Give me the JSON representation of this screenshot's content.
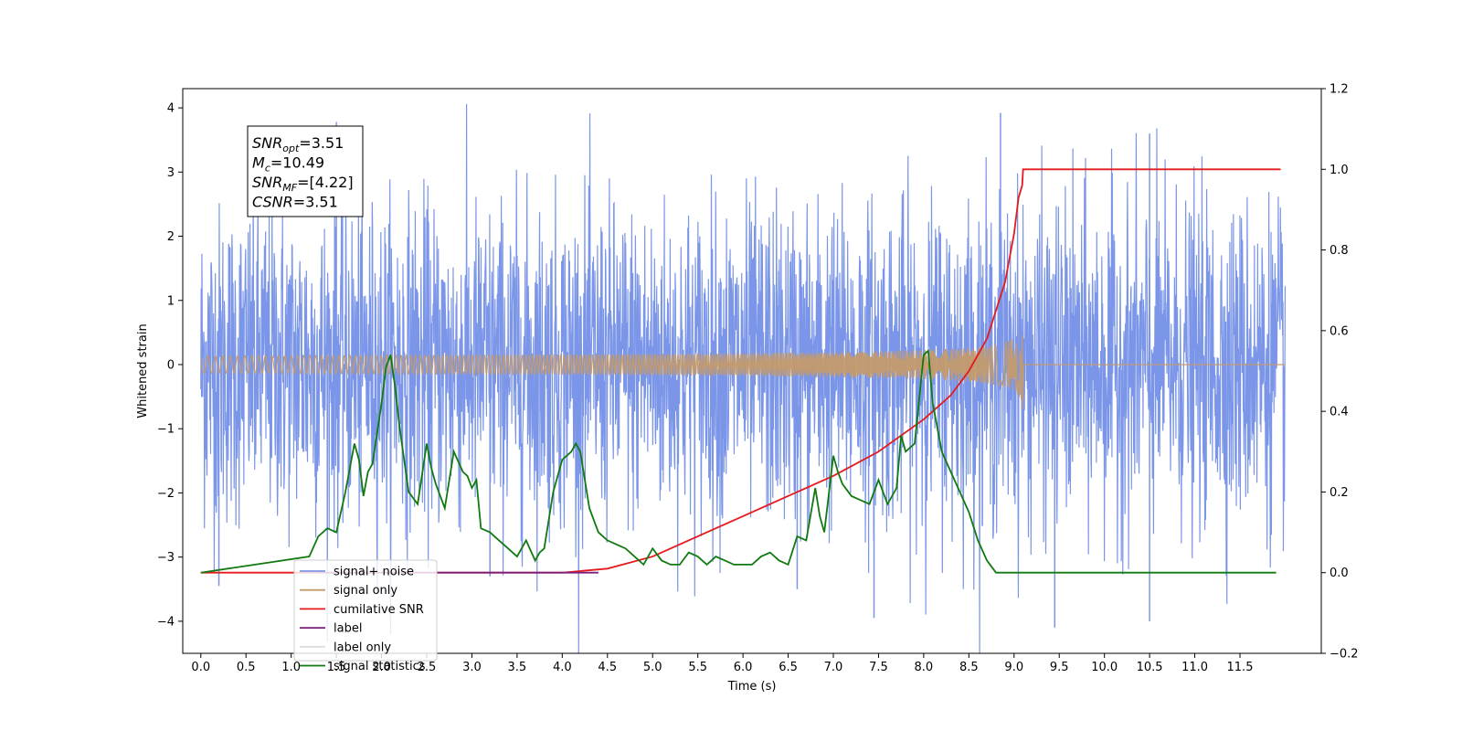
{
  "chart_data": {
    "type": "line",
    "xlabel": "Time (s)",
    "ylabel": "Whitened strain",
    "xlim": [
      -0.2,
      12.4
    ],
    "ylim": [
      -4.5,
      4.3
    ],
    "y2lim": [
      -0.2,
      1.2
    ],
    "x_ticks": [
      "0.0",
      "0.5",
      "1.0",
      "1.5",
      "2.0",
      "2.5",
      "3.0",
      "3.5",
      "4.0",
      "4.5",
      "5.0",
      "5.5",
      "6.0",
      "6.5",
      "7.0",
      "7.5",
      "8.0",
      "8.5",
      "9.0",
      "9.5",
      "10.0",
      "10.5",
      "11.0",
      "11.5"
    ],
    "y_ticks": [
      "4",
      "3",
      "2",
      "1",
      "0",
      "−1",
      "−2",
      "−3",
      "−4"
    ],
    "y2_ticks": [
      "1.2",
      "1.0",
      "0.8",
      "0.6",
      "0.4",
      "0.2",
      "0.0",
      "−0.2"
    ],
    "legend_position": "lower-left",
    "annotation": [
      {
        "main": "SNR",
        "sub": "opt",
        "value": "=3.51"
      },
      {
        "main": "M",
        "sub": "c",
        "value": "=10.49"
      },
      {
        "main": "SNR",
        "sub": "MF",
        "value": "=[4.22]"
      },
      {
        "main": "CSNR",
        "sub": "",
        "value": "=3.51"
      }
    ],
    "series": [
      {
        "name": "signal+ noise",
        "color": "#7b96e8",
        "axis": "left",
        "kind": "noise",
        "x_range": [
          0.0,
          12.0
        ],
        "typical_amplitude": 2.0,
        "extremes": [
          {
            "x": 0.2,
            "y": -3.45
          },
          {
            "x": 1.5,
            "y": 3.78
          },
          {
            "x": 3.2,
            "y": -3.3
          },
          {
            "x": 6.6,
            "y": -3.5
          },
          {
            "x": 7.45,
            "y": -3.95
          },
          {
            "x": 8.85,
            "y": 3.92
          },
          {
            "x": 9.45,
            "y": -4.1
          },
          {
            "x": 10.5,
            "y": -4.0
          },
          {
            "x": 10.5,
            "y": 3.6
          }
        ]
      },
      {
        "name": "signal only",
        "color": "#c49a6c",
        "axis": "left",
        "kind": "chirp",
        "x_range": [
          0.0,
          12.0
        ],
        "merger_time": 9.1,
        "peak_amplitude": 0.7
      },
      {
        "name": "cumilative SNR",
        "color": "#e41a1c",
        "axis": "right",
        "x": [
          0.0,
          4.0,
          4.5,
          5.0,
          5.5,
          6.0,
          6.5,
          7.0,
          7.5,
          8.0,
          8.3,
          8.5,
          8.7,
          8.9,
          9.0,
          9.05,
          9.09,
          9.1,
          11.95
        ],
        "y": [
          0.0,
          0.0,
          0.01,
          0.04,
          0.09,
          0.14,
          0.19,
          0.24,
          0.3,
          0.38,
          0.44,
          0.5,
          0.58,
          0.72,
          0.84,
          0.93,
          0.96,
          1.0,
          1.0
        ]
      },
      {
        "name": "label",
        "color": "#7b1f7a",
        "axis": "right",
        "x": [
          1.3,
          4.4
        ],
        "y": [
          0.0,
          0.0
        ]
      },
      {
        "name": "label only",
        "color": "#dddddd",
        "axis": "right",
        "x": [],
        "y": []
      },
      {
        "name": "signal statistics",
        "color": "#107a10",
        "axis": "right",
        "x": [
          0.0,
          1.2,
          1.3,
          1.4,
          1.5,
          1.6,
          1.7,
          1.75,
          1.8,
          1.85,
          1.9,
          2.0,
          2.05,
          2.1,
          2.15,
          2.2,
          2.3,
          2.4,
          2.5,
          2.55,
          2.6,
          2.7,
          2.8,
          2.9,
          2.95,
          3.0,
          3.05,
          3.1,
          3.2,
          3.3,
          3.4,
          3.5,
          3.6,
          3.7,
          3.75,
          3.8,
          3.9,
          4.0,
          4.1,
          4.15,
          4.2,
          4.3,
          4.4,
          4.5,
          4.6,
          4.7,
          4.8,
          4.9,
          5.0,
          5.1,
          5.2,
          5.3,
          5.4,
          5.5,
          5.6,
          5.7,
          5.8,
          5.9,
          6.0,
          6.1,
          6.2,
          6.3,
          6.4,
          6.5,
          6.6,
          6.7,
          6.8,
          6.85,
          6.9,
          7.0,
          7.05,
          7.1,
          7.2,
          7.3,
          7.4,
          7.5,
          7.6,
          7.7,
          7.75,
          7.8,
          7.9,
          8.0,
          8.05,
          8.1,
          8.2,
          8.3,
          8.4,
          8.5,
          8.6,
          8.7,
          8.8,
          9.0,
          9.2,
          9.4,
          9.6,
          11.9
        ],
        "y": [
          0.0,
          0.04,
          0.09,
          0.11,
          0.1,
          0.2,
          0.32,
          0.28,
          0.19,
          0.25,
          0.27,
          0.42,
          0.51,
          0.54,
          0.46,
          0.36,
          0.2,
          0.17,
          0.32,
          0.26,
          0.22,
          0.16,
          0.3,
          0.25,
          0.24,
          0.21,
          0.23,
          0.11,
          0.1,
          0.08,
          0.06,
          0.04,
          0.08,
          0.03,
          0.05,
          0.06,
          0.2,
          0.28,
          0.3,
          0.32,
          0.3,
          0.16,
          0.1,
          0.08,
          0.07,
          0.06,
          0.04,
          0.02,
          0.06,
          0.03,
          0.02,
          0.02,
          0.05,
          0.04,
          0.02,
          0.04,
          0.03,
          0.02,
          0.02,
          0.02,
          0.04,
          0.05,
          0.03,
          0.02,
          0.09,
          0.08,
          0.21,
          0.14,
          0.1,
          0.29,
          0.25,
          0.22,
          0.19,
          0.18,
          0.17,
          0.23,
          0.17,
          0.21,
          0.34,
          0.3,
          0.32,
          0.54,
          0.55,
          0.42,
          0.3,
          0.25,
          0.2,
          0.15,
          0.08,
          0.03,
          0.0,
          0.0,
          0.0,
          0.0,
          0.0,
          0.0
        ]
      }
    ]
  }
}
